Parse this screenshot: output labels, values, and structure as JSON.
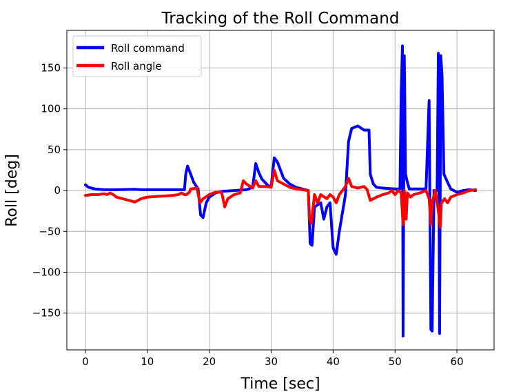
{
  "chart_data": {
    "type": "line",
    "title": "Tracking of the Roll Command",
    "xlabel": "Time [sec]",
    "ylabel": "Roll [deg]",
    "xlim": [
      -3,
      66
    ],
    "ylim": [
      -195,
      196
    ],
    "x_ticks": [
      0,
      10,
      20,
      30,
      40,
      50,
      60
    ],
    "y_ticks": [
      -150,
      -100,
      -50,
      0,
      50,
      100,
      150
    ],
    "x_tick_labels": [
      "0",
      "10",
      "20",
      "30",
      "40",
      "50",
      "60"
    ],
    "y_tick_labels": [
      "−150",
      "−100",
      "−50",
      "0",
      "50",
      "100",
      "150"
    ],
    "grid": true,
    "legend": {
      "placement": "top-left",
      "entries": [
        "Roll command",
        "Roll angle"
      ]
    },
    "series": [
      {
        "name": "Roll command",
        "color": "#0000ff",
        "points": [
          [
            0,
            7
          ],
          [
            0.5,
            4
          ],
          [
            1.5,
            2
          ],
          [
            3,
            1
          ],
          [
            5,
            1
          ],
          [
            8,
            1.5
          ],
          [
            9,
            1
          ],
          [
            12,
            1
          ],
          [
            14,
            1
          ],
          [
            16,
            1
          ],
          [
            16.2,
            20
          ],
          [
            16.5,
            30
          ],
          [
            17,
            20
          ],
          [
            17.5,
            10
          ],
          [
            18.2,
            2
          ],
          [
            18.6,
            -30
          ],
          [
            19,
            -33
          ],
          [
            19.5,
            -15
          ],
          [
            20,
            -8
          ],
          [
            21,
            -3
          ],
          [
            22,
            -1
          ],
          [
            24,
            0
          ],
          [
            26,
            1
          ],
          [
            27,
            4
          ],
          [
            27.5,
            33
          ],
          [
            28,
            22
          ],
          [
            28.5,
            14
          ],
          [
            29,
            10
          ],
          [
            29.5,
            6
          ],
          [
            30,
            5
          ],
          [
            30.5,
            40
          ],
          [
            31,
            35
          ],
          [
            32,
            15
          ],
          [
            33,
            8
          ],
          [
            34,
            4
          ],
          [
            35,
            2
          ],
          [
            36,
            0
          ],
          [
            36.3,
            -65
          ],
          [
            36.6,
            -67
          ],
          [
            37,
            -20
          ],
          [
            38,
            -15
          ],
          [
            38.5,
            -35
          ],
          [
            39,
            -20
          ],
          [
            39.5,
            -15
          ],
          [
            40,
            -70
          ],
          [
            40.5,
            -78
          ],
          [
            41,
            -50
          ],
          [
            42,
            -5
          ],
          [
            42.5,
            60
          ],
          [
            43,
            76
          ],
          [
            44,
            79
          ],
          [
            45,
            74
          ],
          [
            45.8,
            74
          ],
          [
            46,
            20
          ],
          [
            46.5,
            8
          ],
          [
            47,
            4
          ],
          [
            48,
            3
          ],
          [
            50,
            2
          ],
          [
            50.8,
            2
          ],
          [
            51,
            120
          ],
          [
            51.2,
            177
          ],
          [
            51.3,
            -178
          ],
          [
            51.5,
            165
          ],
          [
            51.7,
            20
          ],
          [
            52,
            10
          ],
          [
            52.3,
            2
          ],
          [
            53,
            2
          ],
          [
            55,
            2
          ],
          [
            55.5,
            110
          ],
          [
            55.8,
            -170
          ],
          [
            56,
            -172
          ],
          [
            56.3,
            0
          ],
          [
            56.8,
            0
          ],
          [
            57,
            168
          ],
          [
            57.2,
            -175
          ],
          [
            57.4,
            165
          ],
          [
            57.6,
            140
          ],
          [
            57.9,
            20
          ],
          [
            58.5,
            10
          ],
          [
            59,
            2
          ],
          [
            60,
            -2
          ],
          [
            61,
            0
          ],
          [
            62,
            1
          ],
          [
            63,
            0
          ]
        ]
      },
      {
        "name": "Roll angle",
        "color": "#ff0000",
        "points": [
          [
            0,
            -6
          ],
          [
            1,
            -5
          ],
          [
            2,
            -5
          ],
          [
            3,
            -4
          ],
          [
            3.5,
            -5
          ],
          [
            4,
            -3
          ],
          [
            4.5,
            -5
          ],
          [
            5,
            -8
          ],
          [
            6,
            -10
          ],
          [
            7,
            -12
          ],
          [
            8,
            -14
          ],
          [
            9,
            -10
          ],
          [
            10,
            -8
          ],
          [
            12,
            -7
          ],
          [
            14,
            -6
          ],
          [
            15,
            -5
          ],
          [
            15.5,
            -3
          ],
          [
            16,
            -5
          ],
          [
            16.3,
            -5
          ],
          [
            16.8,
            -2
          ],
          [
            17,
            2
          ],
          [
            18,
            3
          ],
          [
            18.5,
            -15
          ],
          [
            19,
            -10
          ],
          [
            20,
            -5
          ],
          [
            21,
            -2
          ],
          [
            22,
            -2
          ],
          [
            22.5,
            -20
          ],
          [
            23,
            -10
          ],
          [
            24,
            -5
          ],
          [
            25,
            -3
          ],
          [
            25.5,
            12
          ],
          [
            26,
            8
          ],
          [
            27,
            3
          ],
          [
            27.5,
            12
          ],
          [
            28,
            5
          ],
          [
            29,
            5
          ],
          [
            30,
            4
          ],
          [
            30.5,
            25
          ],
          [
            31,
            12
          ],
          [
            32,
            8
          ],
          [
            33,
            4
          ],
          [
            34,
            2
          ],
          [
            35,
            1
          ],
          [
            36,
            0
          ],
          [
            36.2,
            -35
          ],
          [
            36.5,
            -40
          ],
          [
            37,
            -5
          ],
          [
            37.5,
            -15
          ],
          [
            38,
            -5
          ],
          [
            39,
            -10
          ],
          [
            39.5,
            -5
          ],
          [
            40,
            -8
          ],
          [
            40.5,
            -15
          ],
          [
            41,
            -5
          ],
          [
            42,
            5
          ],
          [
            42.5,
            15
          ],
          [
            43,
            5
          ],
          [
            44,
            3
          ],
          [
            45,
            5
          ],
          [
            45.5,
            1
          ],
          [
            46,
            -12
          ],
          [
            47,
            -8
          ],
          [
            48,
            -5
          ],
          [
            49,
            -3
          ],
          [
            49.5,
            0
          ],
          [
            50,
            -5
          ],
          [
            50.5,
            0
          ],
          [
            51,
            -3
          ],
          [
            51.3,
            -42
          ],
          [
            51.5,
            0
          ],
          [
            51.8,
            -35
          ],
          [
            52,
            -3
          ],
          [
            52.5,
            -8
          ],
          [
            53,
            -5
          ],
          [
            54,
            -3
          ],
          [
            55,
            0
          ],
          [
            55.5,
            -10
          ],
          [
            55.8,
            -42
          ],
          [
            56,
            -15
          ],
          [
            56.5,
            0
          ],
          [
            57,
            -25
          ],
          [
            57.3,
            -45
          ],
          [
            57.5,
            -15
          ],
          [
            58,
            -10
          ],
          [
            58.5,
            -15
          ],
          [
            59,
            -8
          ],
          [
            60,
            -5
          ],
          [
            61,
            -3
          ],
          [
            62,
            0
          ],
          [
            63,
            1
          ]
        ]
      }
    ]
  }
}
